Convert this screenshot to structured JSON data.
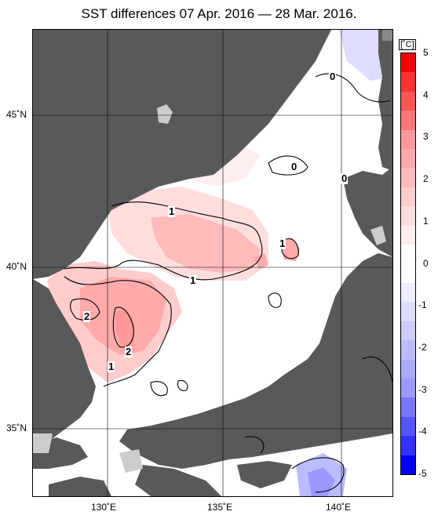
{
  "title": "SST differences 07 Apr. 2016 — 28 Mar. 2016.",
  "lat_labels": [
    "45˚N",
    "40˚N",
    "35˚N"
  ],
  "lon_labels": [
    "130˚E",
    "135˚E",
    "140˚E"
  ],
  "colorbar": {
    "unit": "[˚C]",
    "ticks": [
      "5",
      "4",
      "3",
      "2",
      "1",
      "0",
      "-1",
      "-2",
      "-3",
      "-4",
      "-5"
    ],
    "colors_top_to_bottom": [
      "#ff0000",
      "#ff3333",
      "#ff5555",
      "#ff7777",
      "#ff9999",
      "#ffaaaa",
      "#ffbbbb",
      "#ffcccc",
      "#ffdddd",
      "#ffeeee",
      "#ffffff",
      "#ffffff",
      "#eeeeff",
      "#ddddff",
      "#ccccff",
      "#bbbbff",
      "#aaaaff",
      "#9999ff",
      "#7777ff",
      "#5555ff",
      "#3333ff",
      "#0000ff"
    ]
  },
  "contour_labels": [
    "0",
    "0",
    "0",
    "1",
    "1",
    "1",
    "1",
    "2",
    "2"
  ],
  "colors": {
    "land": "#595959",
    "ice": "#cccccc",
    "grid": "#000000"
  }
}
